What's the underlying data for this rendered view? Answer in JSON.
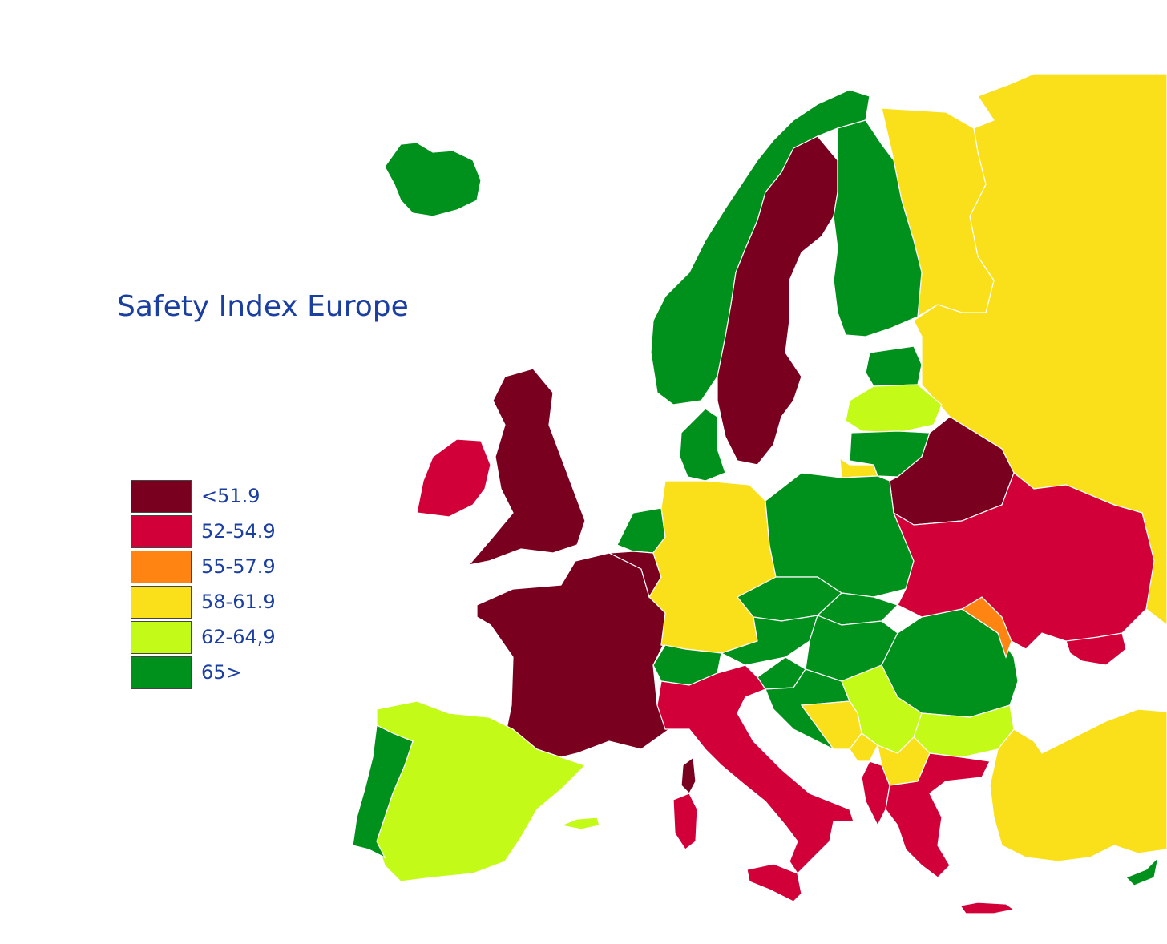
{
  "title": "Safety Index Europe",
  "colors": {
    "c51": "#7a0020",
    "c52": "#d10038",
    "c55": "#ff8412",
    "c58": "#f9e01a",
    "c62": "#c4fa18",
    "c65": "#00901c"
  },
  "legend": [
    {
      "label": "<51.9",
      "color": "#7a0020"
    },
    {
      "label": "52-54.9",
      "color": "#d10038"
    },
    {
      "label": "55-57.9",
      "color": "#ff8412"
    },
    {
      "label": "58-61.9",
      "color": "#f9e01a"
    },
    {
      "label": "62-64,9",
      "color": "#c4fa18"
    },
    {
      "label": "65>",
      "color": "#00901c"
    }
  ]
}
